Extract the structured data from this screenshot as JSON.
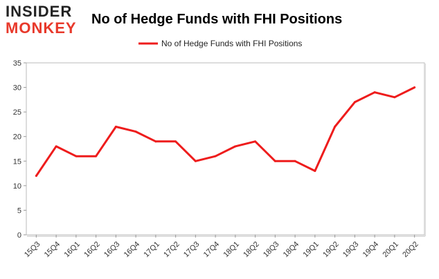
{
  "brand": {
    "logo_line1": "INSIDER",
    "logo_line2": "MONKEY",
    "logo_color": "#e8392b"
  },
  "chart_data": {
    "type": "line",
    "title": "No of Hedge Funds with FHI Positions",
    "xlabel": "",
    "ylabel": "",
    "categories": [
      "15Q3",
      "15Q4",
      "16Q1",
      "16Q2",
      "16Q3",
      "16Q4",
      "17Q1",
      "17Q2",
      "17Q3",
      "17Q4",
      "18Q1",
      "18Q2",
      "18Q3",
      "18Q4",
      "19Q1",
      "19Q2",
      "19Q3",
      "19Q4",
      "20Q1",
      "20Q2"
    ],
    "series": [
      {
        "name": "No of Hedge Funds with FHI Positions",
        "color": "#ee1c1c",
        "values": [
          12,
          18,
          16,
          16,
          22,
          21,
          19,
          19,
          15,
          16,
          18,
          19,
          15,
          15,
          13,
          22,
          27,
          29,
          28,
          30
        ]
      }
    ],
    "ylim": [
      0,
      35
    ],
    "yticks": [
      0,
      5,
      10,
      15,
      20,
      25,
      30,
      35
    ],
    "grid": false,
    "legend_position": "top-center"
  }
}
